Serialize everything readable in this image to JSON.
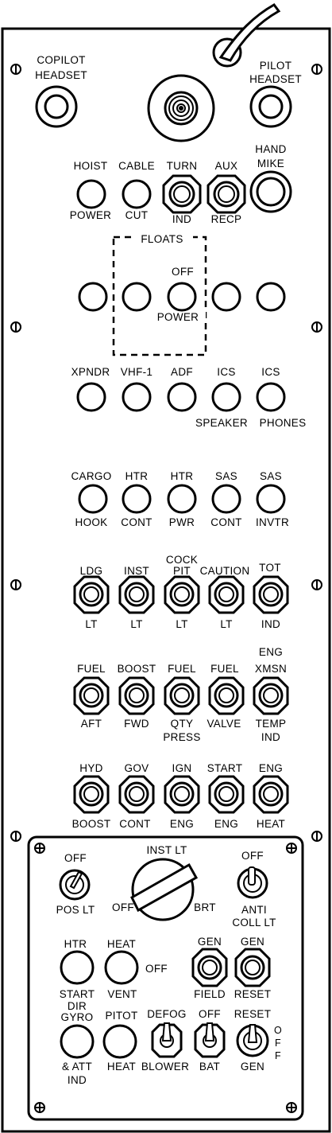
{
  "headsets": {
    "copilot_line1": "COPILOT",
    "copilot_line2": "HEADSET",
    "pilot_line1": "PILOT",
    "pilot_line2": "HEADSET"
  },
  "row1": {
    "hoist_top": "HOIST",
    "hoist_bottom": "POWER",
    "cable_top": "CABLE",
    "cable_bottom": "CUT",
    "turn_top": "TURN",
    "turn_bottom": "IND",
    "aux_top": "AUX",
    "aux_bottom": "RECP",
    "hand_line1": "HAND",
    "hand_line2": "MIKE"
  },
  "floats": {
    "title": "FLOATS",
    "off": "OFF",
    "power": "POWER"
  },
  "row3": {
    "xpndr": "XPNDR",
    "vhf": "VHF-1",
    "adf": "ADF",
    "ics1": "ICS",
    "ics2": "ICS",
    "speaker": "SPEAKER",
    "phones": "PHONES"
  },
  "row4": {
    "cargo": "CARGO",
    "hook": "HOOK",
    "htr1": "HTR",
    "cont1": "CONT",
    "htr2": "HTR",
    "pwr": "PWR",
    "sas1": "SAS",
    "cont2": "CONT",
    "sas2": "SAS",
    "invtr": "INVTR"
  },
  "row5": {
    "ldg": "LDG",
    "inst": "INST",
    "cock": "COCK",
    "pit": "PIT",
    "caution": "CAUTION",
    "tot": "TOT",
    "lt1": "LT",
    "lt2": "LT",
    "lt3": "LT",
    "lt4": "LT",
    "ind": "IND"
  },
  "row6": {
    "fuel1": "FUEL",
    "boost": "BOOST",
    "fuel2": "FUEL",
    "fuel3": "FUEL",
    "eng": "ENG",
    "xmsn": "XMSN",
    "aft": "AFT",
    "fwd": "FWD",
    "qty": "QTY",
    "press": "PRESS",
    "valve": "VALVE",
    "temp": "TEMP",
    "ind": "IND"
  },
  "row7": {
    "hyd": "HYD",
    "gov": "GOV",
    "ign": "IGN",
    "start": "START",
    "eng": "ENG",
    "boost": "BOOST",
    "cont": "CONT",
    "eng2": "ENG",
    "eng3": "ENG",
    "heat": "HEAT"
  },
  "lower": {
    "pos_off": "OFF",
    "pos_lt": "POS LT",
    "inst_lt": "INST LT",
    "knob_off": "OFF",
    "knob_brt": "BRT",
    "anti_off": "OFF",
    "anti_line1": "ANTI",
    "anti_line2": "COLL LT",
    "htr": "HTR",
    "heat": "HEAT",
    "heat_off": "OFF",
    "gen1": "GEN",
    "gen2": "GEN",
    "start": "START",
    "dir": "DIR",
    "vent": "VENT",
    "field": "FIELD",
    "reset": "RESET",
    "gyro": "GYRO",
    "att": "& ATT",
    "ind": "IND",
    "pitot": "PITOT",
    "heat2": "HEAT",
    "defog": "DEFOG",
    "blower": "BLOWER",
    "bat_off": "OFF",
    "bat": "BAT",
    "reset2": "RESET",
    "gen3": "GEN",
    "off_vert": "OFF"
  }
}
